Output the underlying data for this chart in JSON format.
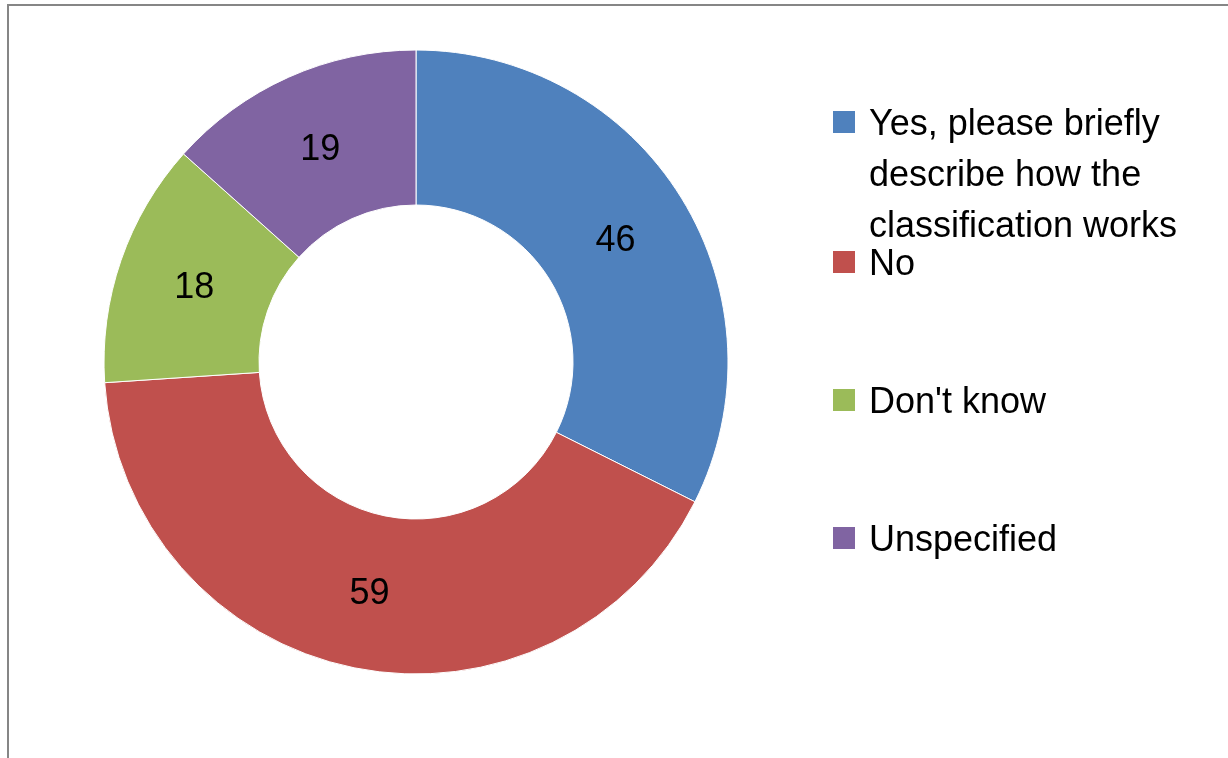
{
  "chart_data": {
    "type": "donut",
    "categories": [
      "Yes, please briefly describe how the classification works",
      "No",
      "Don't know",
      "Unspecified"
    ],
    "values": [
      46,
      59,
      18,
      19
    ],
    "colors": [
      "#4f81bd",
      "#c0504d",
      "#9bbb59",
      "#8064a2"
    ],
    "data_labels": true,
    "legend": "right"
  }
}
